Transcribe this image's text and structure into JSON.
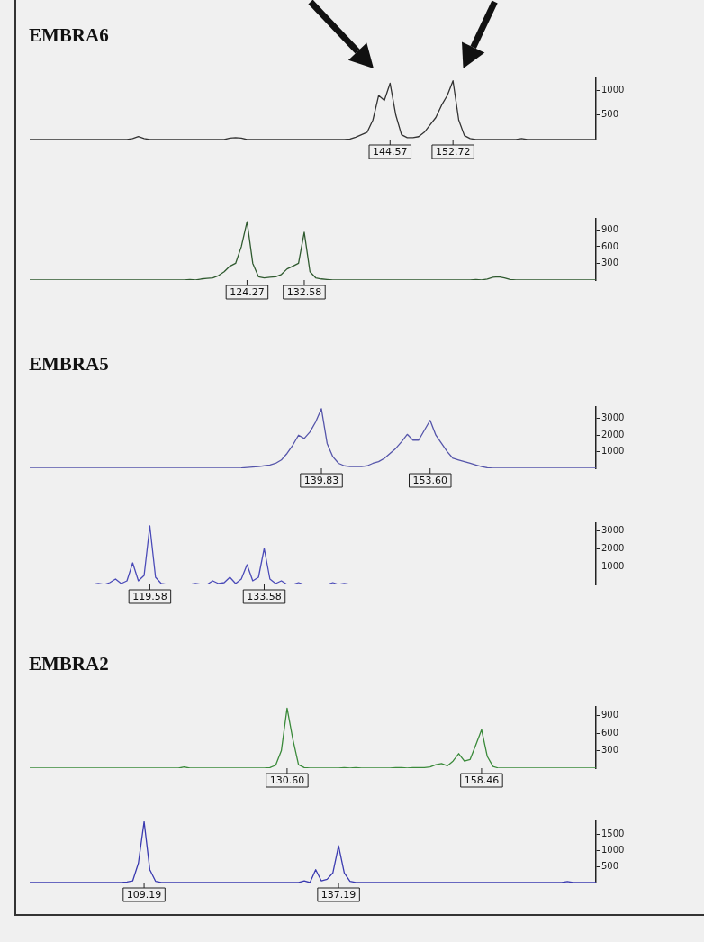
{
  "chart_data": [
    {
      "type": "line",
      "title": "EMBRA6",
      "ylim": [
        0,
        1250
      ],
      "yticks": [
        500,
        1000
      ],
      "categories": [
        null,
        null,
        null,
        null,
        null,
        null,
        null,
        null,
        null,
        null,
        null,
        null,
        null,
        null,
        null,
        null,
        null,
        null,
        null,
        null,
        null,
        null,
        null,
        null,
        null,
        null,
        null,
        null,
        null,
        null,
        null,
        null,
        null,
        null,
        null,
        null,
        null,
        null,
        null,
        null,
        null,
        null,
        null,
        null,
        null,
        null,
        null,
        null,
        null,
        null,
        null,
        null,
        null,
        null,
        null,
        null,
        null,
        null,
        null,
        null,
        null,
        null,
        null,
        "144.57",
        null,
        null,
        null,
        null,
        null,
        null,
        null,
        null,
        null,
        null,
        "152.72",
        null,
        null,
        null,
        null,
        null,
        null,
        null,
        null,
        null,
        null,
        null,
        null,
        null,
        null,
        null,
        null,
        null,
        null,
        null,
        null,
        null,
        null,
        null,
        null,
        null
      ],
      "series": [
        {
          "color": "#333333",
          "values": [
            0,
            0,
            0,
            0,
            0,
            0,
            0,
            0,
            0,
            0,
            0,
            0,
            0,
            0,
            0,
            0,
            0,
            0,
            20,
            60,
            20,
            0,
            0,
            0,
            0,
            0,
            0,
            0,
            0,
            0,
            0,
            0,
            0,
            0,
            0,
            30,
            40,
            30,
            0,
            0,
            0,
            0,
            0,
            0,
            0,
            0,
            0,
            0,
            0,
            0,
            0,
            0,
            0,
            0,
            0,
            0,
            10,
            50,
            100,
            150,
            400,
            900,
            800,
            1150,
            500,
            100,
            40,
            40,
            60,
            150,
            300,
            450,
            700,
            900,
            1200,
            400,
            80,
            20,
            0,
            0,
            0,
            0,
            0,
            0,
            0,
            0,
            20,
            0,
            0,
            0,
            0,
            0,
            0,
            0,
            0,
            0,
            0,
            0,
            0,
            0
          ]
        }
      ]
    },
    {
      "type": "line",
      "ylim": [
        0,
        1100
      ],
      "yticks": [
        300,
        600,
        900
      ],
      "categories": [
        null,
        null,
        null,
        null,
        null,
        null,
        null,
        null,
        null,
        null,
        null,
        null,
        null,
        null,
        null,
        null,
        null,
        null,
        null,
        null,
        null,
        null,
        null,
        null,
        null,
        null,
        null,
        null,
        null,
        null,
        null,
        null,
        null,
        null,
        null,
        null,
        null,
        null,
        "124.27",
        null,
        null,
        null,
        null,
        null,
        null,
        null,
        null,
        null,
        "132.58",
        null,
        null,
        null,
        null,
        null,
        null,
        null,
        null,
        null,
        null,
        null,
        null,
        null,
        null,
        null,
        null,
        null,
        null,
        null,
        null,
        null,
        null,
        null,
        null,
        null,
        null,
        null,
        null,
        null,
        null,
        null,
        null,
        null,
        null,
        null,
        null,
        null,
        null,
        null,
        null,
        null,
        null,
        null,
        null,
        null,
        null,
        null,
        null,
        null,
        null,
        null
      ],
      "series": [
        {
          "color": "#2f5a2f",
          "values": [
            0,
            0,
            0,
            0,
            0,
            0,
            0,
            0,
            0,
            0,
            0,
            0,
            0,
            0,
            0,
            0,
            0,
            0,
            0,
            0,
            0,
            0,
            0,
            0,
            0,
            0,
            0,
            0,
            10,
            0,
            20,
            30,
            40,
            80,
            150,
            250,
            300,
            600,
            1050,
            300,
            60,
            40,
            50,
            60,
            100,
            200,
            250,
            300,
            860,
            150,
            40,
            20,
            10,
            0,
            0,
            0,
            0,
            0,
            0,
            0,
            0,
            0,
            0,
            0,
            0,
            0,
            0,
            0,
            0,
            0,
            0,
            0,
            0,
            0,
            0,
            0,
            0,
            0,
            10,
            0,
            20,
            50,
            60,
            40,
            10,
            0,
            0,
            0,
            0,
            0,
            0,
            0,
            0,
            0,
            0,
            0,
            0,
            0,
            0,
            0
          ]
        }
      ]
    },
    {
      "type": "line",
      "title": "EMBRA5",
      "ylim": [
        0,
        3700
      ],
      "yticks": [
        1000,
        2000,
        3000
      ],
      "categories": [
        null,
        null,
        null,
        null,
        null,
        null,
        null,
        null,
        null,
        null,
        null,
        null,
        null,
        null,
        null,
        null,
        null,
        null,
        null,
        null,
        null,
        null,
        null,
        null,
        null,
        null,
        null,
        null,
        null,
        null,
        null,
        null,
        null,
        null,
        null,
        null,
        null,
        null,
        null,
        null,
        null,
        null,
        null,
        null,
        null,
        null,
        null,
        null,
        null,
        null,
        null,
        "139.83",
        null,
        null,
        null,
        null,
        null,
        null,
        null,
        null,
        null,
        null,
        null,
        null,
        null,
        null,
        null,
        null,
        null,
        null,
        "153.60",
        null,
        null,
        null,
        null,
        null,
        null,
        null,
        null,
        null,
        null,
        null,
        null,
        null,
        null,
        null,
        null,
        null,
        null,
        null,
        null,
        null,
        null,
        null,
        null,
        null,
        null,
        null,
        null,
        null
      ],
      "series": [
        {
          "color": "#5555aa",
          "values": [
            0,
            0,
            0,
            0,
            0,
            0,
            0,
            0,
            0,
            0,
            0,
            0,
            0,
            0,
            0,
            0,
            0,
            0,
            0,
            0,
            0,
            0,
            0,
            0,
            0,
            0,
            0,
            0,
            0,
            0,
            0,
            0,
            0,
            0,
            0,
            0,
            0,
            20,
            50,
            80,
            100,
            150,
            200,
            300,
            500,
            900,
            1400,
            2000,
            1800,
            2200,
            2800,
            3600,
            1500,
            700,
            300,
            150,
            100,
            100,
            100,
            150,
            300,
            400,
            600,
            900,
            1200,
            1600,
            2050,
            1700,
            1700,
            2300,
            2900,
            2000,
            1500,
            1000,
            600,
            500,
            400,
            300,
            200,
            100,
            30,
            0,
            0,
            0,
            0,
            0,
            0,
            0,
            0,
            0,
            0,
            0,
            0,
            0,
            0,
            0,
            0,
            0,
            0,
            0
          ]
        }
      ]
    },
    {
      "type": "line",
      "ylim": [
        0,
        3400
      ],
      "yticks": [
        1000,
        2000,
        3000
      ],
      "categories": [
        null,
        null,
        null,
        null,
        null,
        null,
        null,
        null,
        null,
        null,
        null,
        null,
        null,
        null,
        null,
        null,
        null,
        null,
        null,
        null,
        null,
        "119.58",
        null,
        null,
        null,
        null,
        null,
        null,
        null,
        null,
        null,
        null,
        null,
        null,
        null,
        null,
        null,
        null,
        null,
        null,
        null,
        "133.58",
        null,
        null,
        null,
        null,
        null,
        null,
        null,
        null,
        null,
        null,
        null,
        null,
        null,
        null,
        null,
        null,
        null,
        null,
        null,
        null,
        null,
        null,
        null,
        null,
        null,
        null,
        null,
        null,
        null,
        null,
        null,
        null,
        null,
        null,
        null,
        null,
        null,
        null,
        null,
        null,
        null,
        null,
        null,
        null,
        null,
        null,
        null,
        null,
        null,
        null,
        null,
        null,
        null,
        null,
        null,
        null,
        null,
        null
      ],
      "series": [
        {
          "color": "#4a4ab8",
          "values": [
            0,
            0,
            0,
            0,
            0,
            0,
            0,
            0,
            0,
            0,
            0,
            0,
            50,
            0,
            100,
            300,
            50,
            200,
            1200,
            200,
            500,
            3250,
            400,
            50,
            0,
            0,
            0,
            0,
            0,
            50,
            0,
            0,
            200,
            50,
            100,
            400,
            50,
            300,
            1100,
            200,
            400,
            2000,
            300,
            50,
            200,
            0,
            0,
            100,
            0,
            0,
            0,
            0,
            0,
            100,
            0,
            50,
            0,
            0,
            0,
            0,
            0,
            0,
            0,
            0,
            0,
            0,
            0,
            0,
            0,
            0,
            0,
            0,
            0,
            0,
            0,
            0,
            0,
            0,
            0,
            0,
            0,
            0,
            0,
            0,
            0,
            0,
            0,
            0,
            0,
            0,
            0,
            0,
            0,
            0,
            0,
            0,
            0,
            0,
            0,
            0
          ]
        }
      ]
    },
    {
      "type": "line",
      "title": "EMBRA2",
      "ylim": [
        0,
        1050
      ],
      "yticks": [
        300,
        600,
        900
      ],
      "categories": [
        null,
        null,
        null,
        null,
        null,
        null,
        null,
        null,
        null,
        null,
        null,
        null,
        null,
        null,
        null,
        null,
        null,
        null,
        null,
        null,
        null,
        null,
        null,
        null,
        null,
        null,
        null,
        null,
        null,
        null,
        null,
        null,
        null,
        null,
        null,
        null,
        null,
        null,
        null,
        null,
        null,
        null,
        null,
        null,
        null,
        "130.60",
        null,
        null,
        null,
        null,
        null,
        null,
        null,
        null,
        null,
        null,
        null,
        null,
        null,
        null,
        null,
        null,
        null,
        null,
        null,
        null,
        null,
        null,
        null,
        null,
        null,
        null,
        null,
        null,
        null,
        null,
        null,
        null,
        null,
        "158.46",
        null,
        null,
        null,
        null,
        null,
        null,
        null,
        null,
        null,
        null,
        null,
        null,
        null,
        null,
        null,
        null,
        null,
        null,
        null,
        null
      ],
      "series": [
        {
          "color": "#3a8a3a",
          "values": [
            0,
            0,
            0,
            0,
            0,
            0,
            0,
            0,
            0,
            0,
            0,
            0,
            0,
            0,
            0,
            0,
            0,
            0,
            0,
            0,
            0,
            0,
            0,
            0,
            0,
            0,
            0,
            20,
            0,
            0,
            0,
            0,
            0,
            0,
            0,
            0,
            0,
            0,
            0,
            0,
            0,
            0,
            10,
            50,
            300,
            1030,
            500,
            60,
            10,
            0,
            0,
            0,
            0,
            0,
            0,
            10,
            0,
            10,
            0,
            0,
            0,
            0,
            0,
            0,
            10,
            10,
            0,
            10,
            10,
            10,
            20,
            60,
            80,
            40,
            120,
            250,
            120,
            150,
            400,
            660,
            200,
            30,
            0,
            0,
            0,
            0,
            0,
            0,
            0,
            0,
            0,
            0,
            0,
            0,
            0,
            0,
            0,
            0,
            0,
            0
          ]
        }
      ]
    },
    {
      "type": "line",
      "ylim": [
        0,
        1900
      ],
      "yticks": [
        500,
        1000,
        1500
      ],
      "categories": [
        null,
        null,
        null,
        null,
        null,
        null,
        null,
        null,
        null,
        null,
        null,
        null,
        null,
        null,
        null,
        null,
        null,
        null,
        null,
        null,
        "109.19",
        null,
        null,
        null,
        null,
        null,
        null,
        null,
        null,
        null,
        null,
        null,
        null,
        null,
        null,
        null,
        null,
        null,
        null,
        null,
        null,
        null,
        null,
        null,
        null,
        null,
        null,
        null,
        null,
        null,
        null,
        null,
        null,
        null,
        "137.19",
        null,
        null,
        null,
        null,
        null,
        null,
        null,
        null,
        null,
        null,
        null,
        null,
        null,
        null,
        null,
        null,
        null,
        null,
        null,
        null,
        null,
        null,
        null,
        null,
        null,
        null,
        null,
        null,
        null,
        null,
        null,
        null,
        null,
        null,
        null,
        null,
        null,
        null,
        null,
        null,
        null,
        null,
        null,
        null,
        null
      ],
      "series": [
        {
          "color": "#3a3ab0",
          "values": [
            0,
            0,
            0,
            0,
            0,
            0,
            0,
            0,
            0,
            0,
            0,
            0,
            0,
            0,
            0,
            0,
            0,
            20,
            50,
            600,
            1890,
            400,
            40,
            0,
            0,
            0,
            0,
            0,
            0,
            0,
            0,
            0,
            0,
            0,
            0,
            0,
            0,
            0,
            0,
            0,
            0,
            0,
            0,
            0,
            0,
            0,
            0,
            0,
            50,
            0,
            400,
            50,
            100,
            300,
            1140,
            300,
            40,
            0,
            0,
            0,
            0,
            0,
            0,
            0,
            0,
            0,
            0,
            0,
            0,
            0,
            0,
            0,
            0,
            0,
            0,
            0,
            0,
            0,
            0,
            0,
            0,
            0,
            0,
            0,
            0,
            0,
            0,
            0,
            0,
            0,
            0,
            0,
            0,
            0,
            30,
            0,
            0,
            0,
            0,
            0
          ]
        }
      ]
    }
  ]
}
